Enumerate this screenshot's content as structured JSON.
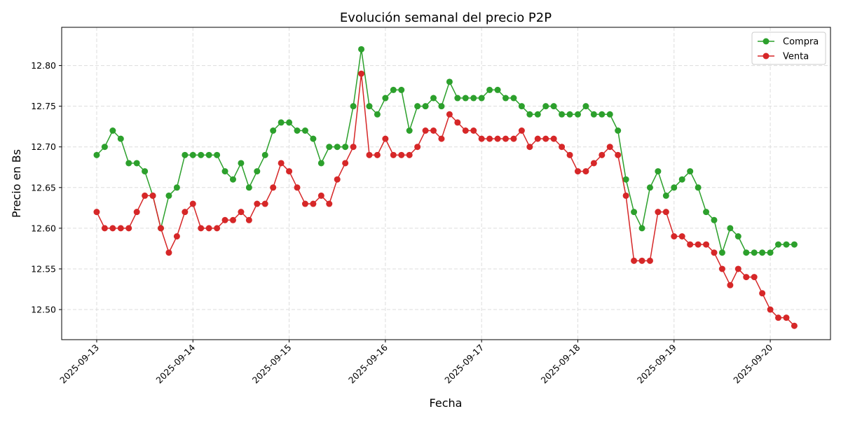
{
  "chart_data": {
    "type": "line",
    "title": "Evolución semanal del precio P2P",
    "xlabel": "Fecha",
    "ylabel": "Precio en Bs",
    "xlim": [
      "2025-09-12T15:16",
      "2025-09-20T15:01"
    ],
    "ylim": [
      12.463,
      12.847
    ],
    "x_ticks": [
      "2025-09-13",
      "2025-09-14",
      "2025-09-15",
      "2025-09-16",
      "2025-09-17",
      "2025-09-18",
      "2025-09-19",
      "2025-09-20"
    ],
    "y_ticks": [
      "12.50",
      "12.55",
      "12.60",
      "12.65",
      "12.70",
      "12.75",
      "12.80"
    ],
    "grid": true,
    "legend_position": "top-right",
    "x": [
      "2025-09-13T00:00",
      "2025-09-13T02:00",
      "2025-09-13T04:00",
      "2025-09-13T06:00",
      "2025-09-13T08:00",
      "2025-09-13T10:00",
      "2025-09-13T12:00",
      "2025-09-13T14:00",
      "2025-09-13T16:00",
      "2025-09-13T18:00",
      "2025-09-13T20:00",
      "2025-09-13T22:00",
      "2025-09-14T00:00",
      "2025-09-14T02:00",
      "2025-09-14T04:00",
      "2025-09-14T06:00",
      "2025-09-14T08:00",
      "2025-09-14T10:00",
      "2025-09-14T12:00",
      "2025-09-14T14:00",
      "2025-09-14T16:00",
      "2025-09-14T18:00",
      "2025-09-14T20:00",
      "2025-09-14T22:00",
      "2025-09-15T00:00",
      "2025-09-15T02:00",
      "2025-09-15T04:00",
      "2025-09-15T06:00",
      "2025-09-15T08:00",
      "2025-09-15T10:00",
      "2025-09-15T12:00",
      "2025-09-15T14:00",
      "2025-09-15T16:00",
      "2025-09-15T18:00",
      "2025-09-15T20:00",
      "2025-09-15T22:00",
      "2025-09-16T00:00",
      "2025-09-16T02:00",
      "2025-09-16T04:00",
      "2025-09-16T06:00",
      "2025-09-16T08:00",
      "2025-09-16T10:00",
      "2025-09-16T12:00",
      "2025-09-16T14:00",
      "2025-09-16T16:00",
      "2025-09-16T18:00",
      "2025-09-16T20:00",
      "2025-09-16T22:00",
      "2025-09-17T00:00",
      "2025-09-17T02:00",
      "2025-09-17T04:00",
      "2025-09-17T06:00",
      "2025-09-17T08:00",
      "2025-09-17T10:00",
      "2025-09-17T12:00",
      "2025-09-17T14:00",
      "2025-09-17T16:00",
      "2025-09-17T18:00",
      "2025-09-17T20:00",
      "2025-09-17T22:00",
      "2025-09-18T00:00",
      "2025-09-18T02:00",
      "2025-09-18T04:00",
      "2025-09-18T06:00",
      "2025-09-18T08:00",
      "2025-09-18T10:00",
      "2025-09-18T12:00",
      "2025-09-18T14:00",
      "2025-09-18T16:00",
      "2025-09-18T18:00",
      "2025-09-18T20:00",
      "2025-09-18T22:00",
      "2025-09-19T00:00",
      "2025-09-19T02:00",
      "2025-09-19T04:00",
      "2025-09-19T06:00",
      "2025-09-19T08:00",
      "2025-09-19T10:00",
      "2025-09-19T12:00",
      "2025-09-19T14:00",
      "2025-09-19T16:00",
      "2025-09-19T18:00",
      "2025-09-19T20:00",
      "2025-09-19T22:00",
      "2025-09-20T00:00",
      "2025-09-20T02:00",
      "2025-09-20T04:00",
      "2025-09-20T06:00"
    ],
    "series": [
      {
        "name": "Compra",
        "color": "#2ca02c",
        "values": [
          12.69,
          12.7,
          12.72,
          12.71,
          12.68,
          12.68,
          12.67,
          12.64,
          12.6,
          12.64,
          12.65,
          12.69,
          12.69,
          12.69,
          12.69,
          12.69,
          12.67,
          12.66,
          12.68,
          12.65,
          12.67,
          12.69,
          12.72,
          12.73,
          12.73,
          12.72,
          12.72,
          12.71,
          12.68,
          12.7,
          12.7,
          12.7,
          12.75,
          12.82,
          12.75,
          12.74,
          12.76,
          12.77,
          12.77,
          12.72,
          12.75,
          12.75,
          12.76,
          12.75,
          12.78,
          12.76,
          12.76,
          12.76,
          12.76,
          12.77,
          12.77,
          12.76,
          12.76,
          12.75,
          12.74,
          12.74,
          12.75,
          12.75,
          12.74,
          12.74,
          12.74,
          12.75,
          12.74,
          12.74,
          12.74,
          12.72,
          12.66,
          12.62,
          12.6,
          12.65,
          12.67,
          12.64,
          12.65,
          12.66,
          12.67,
          12.65,
          12.62,
          12.61,
          12.57,
          12.6,
          12.59,
          12.57,
          12.57,
          12.57,
          12.57,
          12.58,
          12.58,
          12.58
        ]
      },
      {
        "name": "Venta",
        "color": "#d62728",
        "values": [
          12.62,
          12.6,
          12.6,
          12.6,
          12.6,
          12.62,
          12.64,
          12.64,
          12.6,
          12.57,
          12.59,
          12.62,
          12.63,
          12.6,
          12.6,
          12.6,
          12.61,
          12.61,
          12.62,
          12.61,
          12.63,
          12.63,
          12.65,
          12.68,
          12.67,
          12.65,
          12.63,
          12.63,
          12.64,
          12.63,
          12.66,
          12.68,
          12.7,
          12.79,
          12.69,
          12.69,
          12.71,
          12.69,
          12.69,
          12.69,
          12.7,
          12.72,
          12.72,
          12.71,
          12.74,
          12.73,
          12.72,
          12.72,
          12.71,
          12.71,
          12.71,
          12.71,
          12.71,
          12.72,
          12.7,
          12.71,
          12.71,
          12.71,
          12.7,
          12.69,
          12.67,
          12.67,
          12.68,
          12.69,
          12.7,
          12.69,
          12.64,
          12.56,
          12.56,
          12.56,
          12.62,
          12.62,
          12.59,
          12.59,
          12.58,
          12.58,
          12.58,
          12.57,
          12.55,
          12.53,
          12.55,
          12.54,
          12.54,
          12.52,
          12.5,
          12.49,
          12.49,
          12.48
        ]
      }
    ]
  }
}
